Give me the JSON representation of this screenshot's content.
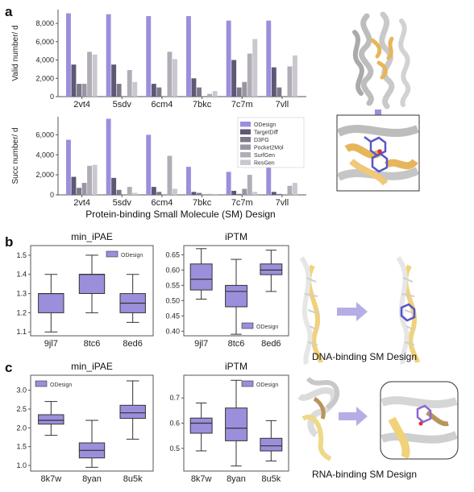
{
  "panel_a": {
    "letter": "a",
    "xlabel": "Protein-binding Small Molecule (SM) Design",
    "legend": [
      "ODesign",
      "TargetDiff",
      "D3FG",
      "Pocket2Mol",
      "SurfGen",
      "ResGen"
    ],
    "colors": {
      "ODesign": "#9b8fdc",
      "TargetDiff": "#5f5874",
      "D3FG": "#7f7889",
      "Pocket2Mol": "#9a95a3",
      "SurfGen": "#b1adb6",
      "ResGen": "#cac7cf"
    }
  },
  "panel_b": {
    "letter": "b",
    "caption": "DNA-binding SM Design",
    "legend": "ODesign"
  },
  "panel_c": {
    "letter": "c",
    "caption": "RNA-binding SM Design",
    "legend": "ODesign"
  },
  "chart_data": [
    {
      "id": "a-valid",
      "type": "bar",
      "ylabel": "Valid number/ d",
      "categories": [
        "2vt4",
        "5sdv",
        "6cm4",
        "7bkc",
        "7c7m",
        "7vll"
      ],
      "ylim": [
        0,
        9500
      ],
      "yticks": [
        0,
        2000,
        4000,
        6000,
        8000
      ],
      "yticklabels": [
        "0",
        "2,000",
        "4,000",
        "6,000",
        "8,000"
      ],
      "series": [
        {
          "name": "ODesign",
          "values": [
            9100,
            9000,
            8800,
            8800,
            8300,
            8300
          ]
        },
        {
          "name": "TargetDiff",
          "values": [
            3500,
            3500,
            1400,
            2000,
            4000,
            3200
          ]
        },
        {
          "name": "D3FG",
          "values": [
            1400,
            1400,
            1000,
            1000,
            1000,
            1000
          ]
        },
        {
          "name": "Pocket2Mol",
          "values": [
            1400,
            0,
            0,
            0,
            1600,
            0
          ]
        },
        {
          "name": "SurfGen",
          "values": [
            4900,
            2900,
            4900,
            300,
            4700,
            3300
          ]
        },
        {
          "name": "ResGen",
          "values": [
            4600,
            1600,
            4100,
            600,
            6300,
            4500
          ]
        }
      ]
    },
    {
      "id": "a-succ",
      "type": "bar",
      "ylabel": "Succ number/ d",
      "categories": [
        "2vt4",
        "5sdv",
        "6cm4",
        "7bkc",
        "7c7m",
        "7vll"
      ],
      "ylim": [
        0,
        7800
      ],
      "yticks": [
        0,
        2000,
        4000,
        6000
      ],
      "yticklabels": [
        "0",
        "2,000",
        "4,000",
        "6,000"
      ],
      "series": [
        {
          "name": "ODesign",
          "values": [
            5500,
            7600,
            6000,
            2800,
            2300,
            2800
          ]
        },
        {
          "name": "TargetDiff",
          "values": [
            1800,
            1700,
            800,
            300,
            400,
            300
          ]
        },
        {
          "name": "D3FG",
          "values": [
            700,
            500,
            300,
            200,
            100,
            100
          ]
        },
        {
          "name": "Pocket2Mol",
          "values": [
            1200,
            0,
            0,
            0,
            600,
            0
          ]
        },
        {
          "name": "SurfGen",
          "values": [
            2900,
            800,
            3900,
            100,
            2000,
            900
          ]
        },
        {
          "name": "ResGen",
          "values": [
            3000,
            200,
            600,
            100,
            300,
            1200
          ]
        }
      ]
    },
    {
      "id": "b-ipae",
      "type": "box",
      "title": "min_iPAE",
      "categories": [
        "9jl7",
        "8tc6",
        "8ed6"
      ],
      "ylim": [
        1.08,
        1.55
      ],
      "yticks": [
        1.1,
        1.2,
        1.3,
        1.4,
        1.5
      ],
      "yticklabels": [
        "1.1",
        "1.2",
        "1.3",
        "1.4",
        "1.5"
      ],
      "legend_position": "top-right",
      "boxes": [
        {
          "min": 1.1,
          "q1": 1.2,
          "median": 1.3,
          "q3": 1.3,
          "max": 1.4
        },
        {
          "min": 1.2,
          "q1": 1.3,
          "median": 1.4,
          "q3": 1.4,
          "max": 1.5
        },
        {
          "min": 1.15,
          "q1": 1.2,
          "median": 1.25,
          "q3": 1.3,
          "max": 1.4
        }
      ]
    },
    {
      "id": "b-iptm",
      "type": "box",
      "title": "iPTM",
      "categories": [
        "9jl7",
        "8tc6",
        "8ed6"
      ],
      "ylim": [
        0.385,
        0.68
      ],
      "yticks": [
        0.4,
        0.45,
        0.5,
        0.55,
        0.6,
        0.65
      ],
      "yticklabels": [
        "0.40",
        "0.45",
        "0.50",
        "0.55",
        "0.60",
        "0.65"
      ],
      "legend_position": "bottom-right",
      "boxes": [
        {
          "min": 0.505,
          "q1": 0.535,
          "median": 0.57,
          "q3": 0.62,
          "max": 0.67
        },
        {
          "min": 0.39,
          "q1": 0.48,
          "median": 0.53,
          "q3": 0.55,
          "max": 0.635
        },
        {
          "min": 0.53,
          "q1": 0.585,
          "median": 0.6,
          "q3": 0.62,
          "max": 0.665
        }
      ]
    },
    {
      "id": "c-ipae",
      "type": "box",
      "title": "min_iPAE",
      "categories": [
        "8k7w",
        "8yan",
        "8u5k"
      ],
      "ylim": [
        0.85,
        3.4
      ],
      "yticks": [
        1.0,
        1.5,
        2.0,
        2.5,
        3.0
      ],
      "yticklabels": [
        "1.0",
        "1.5",
        "2.0",
        "2.5",
        "3.0"
      ],
      "legend_position": "top-left",
      "boxes": [
        {
          "min": 1.8,
          "q1": 2.1,
          "median": 2.2,
          "q3": 2.35,
          "max": 2.7
        },
        {
          "min": 0.95,
          "q1": 1.2,
          "median": 1.4,
          "q3": 1.6,
          "max": 2.2
        },
        {
          "min": 1.7,
          "q1": 2.25,
          "median": 2.4,
          "q3": 2.6,
          "max": 3.25
        }
      ]
    },
    {
      "id": "c-iptm",
      "type": "box",
      "title": "iPTM",
      "categories": [
        "8k7w",
        "8yan",
        "8u5k"
      ],
      "ylim": [
        0.41,
        0.79
      ],
      "yticks": [
        0.5,
        0.6,
        0.7
      ],
      "yticklabels": [
        "0.5",
        "0.6",
        "0.7"
      ],
      "legend_position": "top-right",
      "boxes": [
        {
          "min": 0.49,
          "q1": 0.56,
          "median": 0.6,
          "q3": 0.62,
          "max": 0.68
        },
        {
          "min": 0.43,
          "q1": 0.53,
          "median": 0.58,
          "q3": 0.66,
          "max": 0.77
        },
        {
          "min": 0.45,
          "q1": 0.49,
          "median": 0.51,
          "q3": 0.54,
          "max": 0.61
        }
      ]
    }
  ]
}
